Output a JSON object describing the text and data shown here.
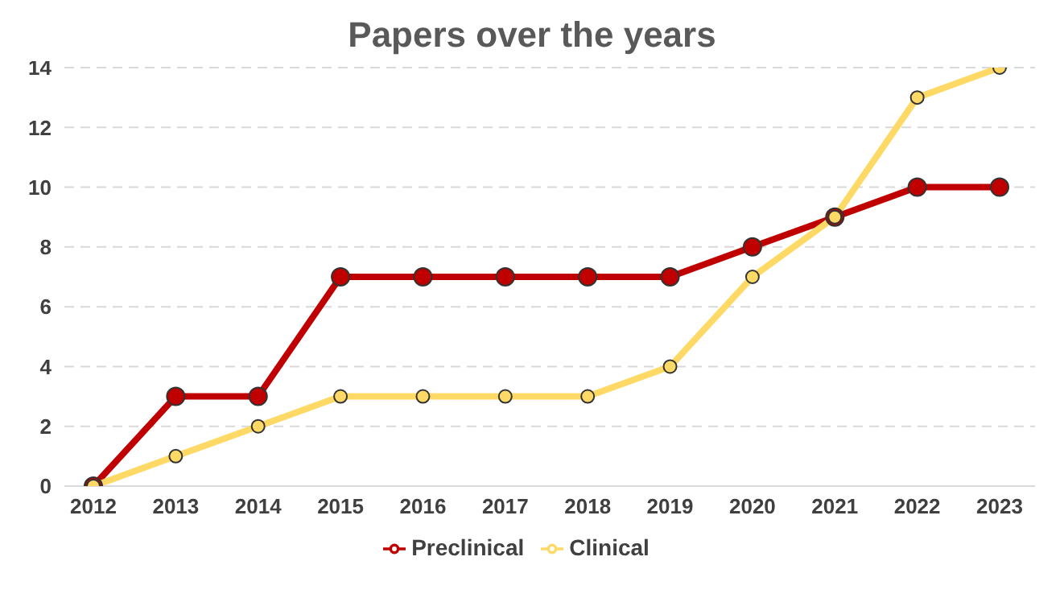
{
  "chart_data": {
    "type": "line",
    "title": "Papers over the years",
    "categories": [
      "2012",
      "2013",
      "2014",
      "2015",
      "2016",
      "2017",
      "2018",
      "2019",
      "2020",
      "2021",
      "2022",
      "2023"
    ],
    "series": [
      {
        "name": "Preclinical",
        "color": "#c00000",
        "values": [
          0,
          3,
          3,
          7,
          7,
          7,
          7,
          7,
          8,
          9,
          10,
          10
        ]
      },
      {
        "name": "Clinical",
        "color": "#ffd966",
        "values": [
          0,
          1,
          2,
          3,
          3,
          3,
          3,
          4,
          7,
          9,
          13,
          14
        ]
      }
    ],
    "ylim": [
      0,
      14
    ],
    "yticks": [
      0,
      2,
      4,
      6,
      8,
      10,
      12,
      14
    ],
    "grid": "y",
    "legend": "bottom",
    "marker": "circle",
    "line_style": "solid"
  }
}
